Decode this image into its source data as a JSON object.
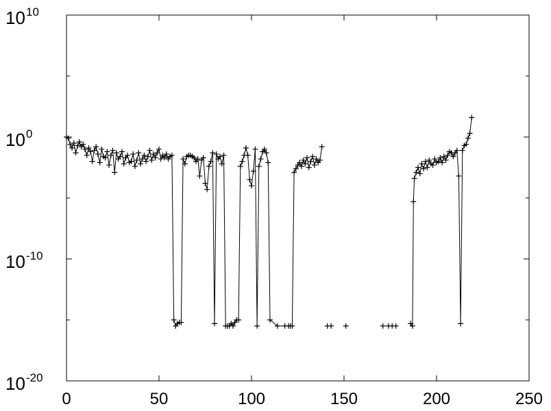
{
  "chart_data": {
    "type": "line",
    "title": "",
    "xlabel": "",
    "ylabel": "",
    "xlim": [
      0,
      250
    ],
    "ylim_log10": [
      -20,
      10
    ],
    "y_scale": "log",
    "grid": false,
    "legend": "none",
    "x_ticks": [
      0,
      50,
      100,
      150,
      200,
      250
    ],
    "x_tick_labels": [
      "0",
      "50",
      "100",
      "150",
      "200",
      "250"
    ],
    "y_tick_exponents": [
      10,
      0,
      -10,
      -20
    ],
    "y_tick_labels": [
      {
        "base": "10",
        "exp": "10"
      },
      {
        "base": "10",
        "exp": "0"
      },
      {
        "base": "10",
        "exp": "-10"
      },
      {
        "base": "10",
        "exp": "-20"
      }
    ],
    "marker": "plus",
    "color": "#000000",
    "series": [
      {
        "segments": [
          [
            [
              0,
              0.0
            ],
            [
              1,
              -0.1
            ],
            [
              2,
              -0.6
            ],
            [
              3,
              -0.9
            ],
            [
              4,
              -0.5
            ],
            [
              5,
              -1.3
            ],
            [
              6,
              -0.7
            ],
            [
              7,
              -0.4
            ],
            [
              8,
              -0.8
            ],
            [
              9,
              -0.6
            ],
            [
              10,
              -1.0
            ],
            [
              11,
              -1.5
            ],
            [
              12,
              -0.9
            ],
            [
              13,
              -1.2
            ],
            [
              14,
              -2.0
            ],
            [
              15,
              -1.1
            ],
            [
              16,
              -0.8
            ],
            [
              17,
              -1.4
            ],
            [
              18,
              -2.1
            ],
            [
              19,
              -1.0
            ],
            [
              20,
              -1.6
            ],
            [
              21,
              -1.7
            ],
            [
              22,
              -1.2
            ],
            [
              23,
              -2.3
            ],
            [
              24,
              -1.5
            ],
            [
              25,
              -1.1
            ],
            [
              26,
              -2.9
            ],
            [
              27,
              -1.3
            ],
            [
              28,
              -1.8
            ],
            [
              29,
              -1.6
            ],
            [
              30,
              -1.2
            ],
            [
              31,
              -2.2
            ],
            [
              32,
              -1.7
            ],
            [
              33,
              -1.5
            ],
            [
              34,
              -2.1
            ],
            [
              35,
              -2.0
            ],
            [
              36,
              -1.4
            ],
            [
              37,
              -2.4
            ],
            [
              38,
              -1.9
            ],
            [
              39,
              -1.3
            ],
            [
              40,
              -2.2
            ],
            [
              41,
              -1.8
            ],
            [
              42,
              -1.5
            ],
            [
              43,
              -2.0
            ],
            [
              44,
              -1.6
            ],
            [
              45,
              -1.1
            ],
            [
              46,
              -1.9
            ],
            [
              47,
              -1.4
            ],
            [
              48,
              -1.7
            ],
            [
              49,
              -1.3
            ],
            [
              50,
              -1.0
            ],
            [
              51,
              -1.8
            ],
            [
              52,
              -1.5
            ],
            [
              53,
              -1.7
            ],
            [
              54,
              -1.4
            ],
            [
              55,
              -1.8
            ],
            [
              56,
              -1.6
            ],
            [
              57,
              -1.5
            ],
            [
              58,
              -15.0
            ],
            [
              59,
              -15.5
            ],
            [
              60,
              -15.3
            ],
            [
              61,
              -15.2
            ],
            [
              62,
              -15.2
            ],
            [
              63,
              -1.8
            ],
            [
              64,
              -2.2
            ],
            [
              65,
              -1.6
            ],
            [
              66,
              -1.5
            ],
            [
              67,
              -1.5
            ],
            [
              68,
              -1.6
            ],
            [
              69,
              -1.7
            ],
            [
              70,
              -2.0
            ],
            [
              71,
              -1.8
            ],
            [
              72,
              -3.2
            ],
            [
              73,
              -1.9
            ],
            [
              74,
              -1.7
            ],
            [
              75,
              -3.8
            ],
            [
              76,
              -4.3
            ],
            [
              77,
              -2.4
            ],
            [
              78,
              -2.0
            ],
            [
              79,
              -1.3
            ],
            [
              80,
              -15.3
            ],
            [
              81,
              -1.4
            ],
            [
              82,
              -1.8
            ],
            [
              83,
              -1.6
            ],
            [
              84,
              -2.2
            ],
            [
              85,
              -1.5
            ],
            [
              86,
              -15.5
            ],
            [
              87,
              -15.5
            ],
            [
              88,
              -15.5
            ],
            [
              89,
              -15.3
            ],
            [
              90,
              -15.5
            ],
            [
              91,
              -15.2
            ],
            [
              92,
              -15.0
            ],
            [
              93,
              -15.0
            ],
            [
              94,
              -2.4
            ],
            [
              95,
              -2.0
            ],
            [
              96,
              -1.5
            ],
            [
              97,
              -0.9
            ],
            [
              98,
              -1.5
            ],
            [
              99,
              -3.5
            ],
            [
              100,
              -4.0
            ],
            [
              101,
              -2.8
            ],
            [
              102,
              -1.0
            ],
            [
              103,
              -15.5
            ],
            [
              104,
              -2.4
            ],
            [
              105,
              -1.8
            ],
            [
              106,
              -1.2
            ],
            [
              107,
              -1.0
            ],
            [
              108,
              -1.3
            ],
            [
              109,
              -2.1
            ],
            [
              110,
              -15.0
            ],
            [
              114,
              -15.5
            ],
            [
              118,
              -15.5
            ],
            [
              120,
              -15.5
            ],
            [
              121,
              -15.5
            ],
            [
              122,
              -15.5
            ],
            [
              123,
              -2.9
            ],
            [
              124,
              -2.6
            ],
            [
              125,
              -2.3
            ],
            [
              126,
              -2.1
            ],
            [
              127,
              -2.4
            ],
            [
              128,
              -1.9
            ],
            [
              129,
              -2.2
            ],
            [
              130,
              -1.7
            ],
            [
              131,
              -2.5
            ],
            [
              132,
              -2.0
            ],
            [
              133,
              -1.6
            ],
            [
              134,
              -2.3
            ],
            [
              135,
              -1.8
            ],
            [
              136,
              -2.1
            ],
            [
              137,
              -1.9
            ],
            [
              138,
              -0.8
            ]
          ],
          [
            [
              186,
              -15.3
            ],
            [
              187,
              -15.5
            ],
            [
              187.5,
              -5.3
            ],
            [
              188,
              -3.4
            ],
            [
              189,
              -2.9
            ],
            [
              190,
              -2.5
            ],
            [
              191,
              -3.0
            ],
            [
              192,
              -2.2
            ],
            [
              193,
              -2.6
            ],
            [
              194,
              -2.0
            ],
            [
              195,
              -2.5
            ],
            [
              196,
              -1.9
            ],
            [
              197,
              -2.2
            ],
            [
              198,
              -2.3
            ],
            [
              199,
              -1.8
            ],
            [
              200,
              -2.1
            ],
            [
              201,
              -2.0
            ],
            [
              202,
              -1.7
            ],
            [
              203,
              -2.1
            ],
            [
              204,
              -1.6
            ],
            [
              205,
              -1.9
            ],
            [
              206,
              -1.5
            ],
            [
              207,
              -1.2
            ],
            [
              208,
              -1.3
            ],
            [
              209,
              -1.6
            ],
            [
              210,
              -1.3
            ],
            [
              211,
              -1.1
            ],
            [
              212,
              -3.2
            ],
            [
              213,
              -15.3
            ],
            [
              214,
              -1.1
            ],
            [
              215,
              -0.7
            ],
            [
              216,
              -0.6
            ],
            [
              217,
              -0.1
            ],
            [
              218,
              0.3
            ],
            [
              219,
              1.6
            ]
          ]
        ],
        "isolated_points": [
          [
            141,
            -15.5
          ],
          [
            143,
            -15.5
          ],
          [
            151,
            -15.5
          ],
          [
            171,
            -15.5
          ],
          [
            174,
            -15.5
          ],
          [
            176,
            -15.5
          ],
          [
            178,
            -15.5
          ]
        ]
      }
    ]
  }
}
